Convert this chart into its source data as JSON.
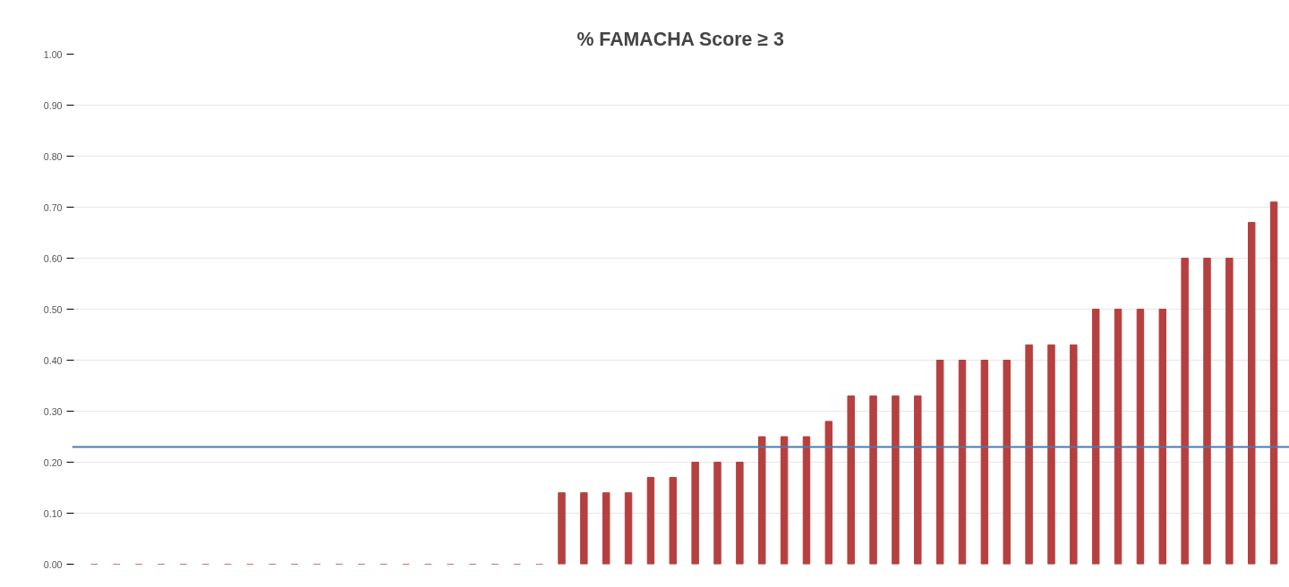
{
  "chart_data": {
    "type": "bar",
    "title": "% FAMACHA Score ≥ 3",
    "categories": [
      null,
      null,
      null,
      null,
      null,
      null,
      null,
      null,
      null,
      null,
      null,
      null,
      null,
      null,
      null,
      null,
      null,
      null,
      null,
      null,
      null,
      null,
      null,
      null,
      null,
      null,
      null,
      null,
      null,
      null,
      null,
      null,
      null,
      null,
      null,
      null,
      null,
      null,
      null,
      null,
      null,
      null,
      null,
      null,
      null,
      null,
      null,
      null,
      null,
      null,
      null,
      null,
      null,
      null
    ],
    "values": [
      0,
      0,
      0,
      0,
      0,
      0,
      0,
      0,
      0,
      0,
      0,
      0,
      0,
      0,
      0,
      0,
      0,
      0,
      0,
      0,
      0,
      0.14,
      0.14,
      0.14,
      0.14,
      0.17,
      0.17,
      0.2,
      0.2,
      0.2,
      0.25,
      0.25,
      0.25,
      0.28,
      0.33,
      0.33,
      0.33,
      0.33,
      0.4,
      0.4,
      0.4,
      0.4,
      0.43,
      0.43,
      0.43,
      0.5,
      0.5,
      0.5,
      0.5,
      0.6,
      0.6,
      0.6,
      0.67,
      0.71
    ],
    "color": "#b5403f",
    "ylim": [
      0,
      1
    ],
    "yticks": [
      {
        "value": 0,
        "label": "0.00"
      },
      {
        "value": 0.1,
        "label": "0.10"
      },
      {
        "value": 0.2,
        "label": "0.20"
      },
      {
        "value": 0.3,
        "label": "0.30"
      },
      {
        "value": 0.4,
        "label": "0.40"
      },
      {
        "value": 0.5,
        "label": "0.50"
      },
      {
        "value": 0.6,
        "label": "0.60"
      },
      {
        "value": 0.7,
        "label": "0.70"
      },
      {
        "value": 0.8,
        "label": "0.80"
      },
      {
        "value": 0.9,
        "label": "0.90"
      },
      {
        "value": 1,
        "label": "1.00"
      }
    ],
    "ref_lines": [
      {
        "axis": "y",
        "value": 0.23,
        "color": "#4a7ab0"
      }
    ],
    "grid": "y",
    "tick_labels": "y"
  }
}
